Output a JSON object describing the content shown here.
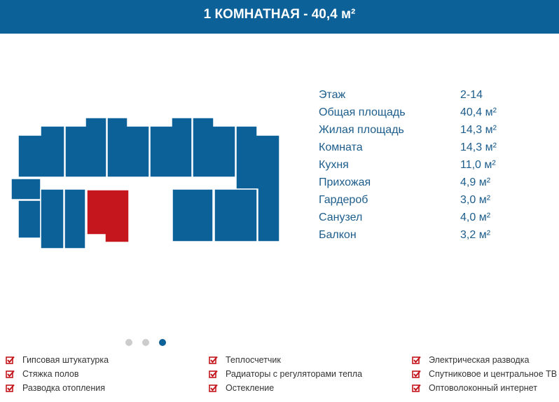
{
  "header": {
    "title": "1 КОМНАТНАЯ - 40,4 м²"
  },
  "specs": [
    {
      "label": "Этаж",
      "value": "2-14"
    },
    {
      "label": "Общая площадь",
      "value": "40,4 м²"
    },
    {
      "label": "Жилая площадь",
      "value": "14,3 м²"
    },
    {
      "label": "Комната",
      "value": "14,3 м²"
    },
    {
      "label": "Кухня",
      "value": "11,0 м²"
    },
    {
      "label": "Прихожая",
      "value": "4,9 м²"
    },
    {
      "label": "Гардероб",
      "value": "3,0 м²"
    },
    {
      "label": "Санузел",
      "value": "4,0 м²"
    },
    {
      "label": "Балкон",
      "value": "3,2 м²"
    }
  ],
  "features": [
    [
      "Гипсовая штукатурка",
      "Стяжка полов",
      "Разводка отопления"
    ],
    [
      "Теплосчетчик",
      "Радиаторы с регуляторами тепла",
      "Остекление"
    ],
    [
      "Электрическая разводка",
      "Спутниковое и центральное ТВ",
      "Оптоволоконный интернет"
    ]
  ]
}
